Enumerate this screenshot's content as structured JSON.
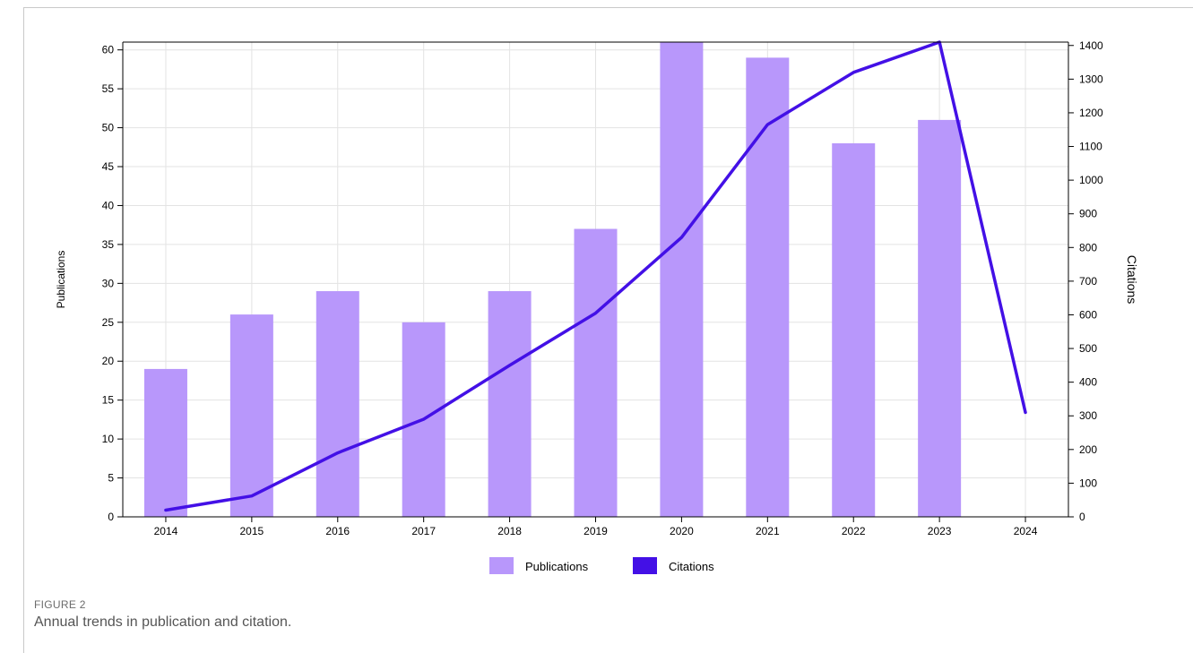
{
  "figure": {
    "label": "FIGURE 2",
    "caption": "Annual trends in publication and citation."
  },
  "colors": {
    "bars": "#b897fb",
    "line": "#4310e6",
    "grid": "#e3e3e3",
    "axis": "#000000"
  },
  "chart_data": {
    "type": "bar",
    "categories": [
      "2014",
      "2015",
      "2016",
      "2017",
      "2018",
      "2019",
      "2020",
      "2021",
      "2022",
      "2023",
      "2024"
    ],
    "series": [
      {
        "name": "Publications",
        "type": "bar",
        "axis": "left",
        "values": [
          19,
          26,
          29,
          25,
          29,
          37,
          61,
          59,
          48,
          51,
          null
        ]
      },
      {
        "name": "Citations",
        "type": "line",
        "axis": "right",
        "values": [
          20,
          62,
          190,
          290,
          450,
          605,
          830,
          1165,
          1320,
          1410,
          310
        ]
      }
    ],
    "ylabel": "Publications",
    "y2label": "Citations",
    "ylim": [
      0,
      61
    ],
    "y2lim": [
      0,
      1410
    ],
    "yticks": [
      0,
      5,
      10,
      15,
      20,
      25,
      30,
      35,
      40,
      45,
      50,
      55,
      60
    ],
    "y2ticks": [
      0,
      100,
      200,
      300,
      400,
      500,
      600,
      700,
      800,
      900,
      1000,
      1100,
      1200,
      1300,
      1400
    ],
    "grid": true,
    "legend": "bottom-center"
  }
}
